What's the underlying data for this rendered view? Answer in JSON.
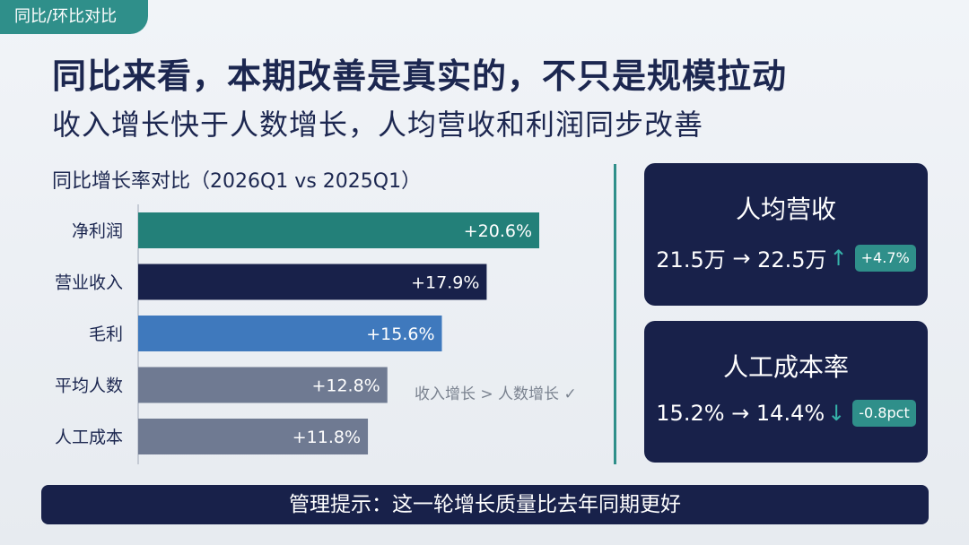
{
  "tag": "同比/环比对比",
  "title": "同比来看，本期改善是真实的，不只是规模拉动",
  "subtitle": "收入增长快于人数增长，人均营收和利润同步改善",
  "chart_data": {
    "type": "bar",
    "orientation": "horizontal",
    "title": "同比增长率对比（2026Q1 vs 2025Q1）",
    "categories": [
      "净利润",
      "营业收入",
      "毛利",
      "平均人数",
      "人工成本"
    ],
    "values": [
      20.6,
      17.9,
      15.6,
      12.8,
      11.8
    ],
    "value_labels": [
      "+20.6%",
      "+17.9%",
      "+15.6%",
      "+12.8%",
      "+11.8%"
    ],
    "colors": [
      "#238079",
      "#18214a",
      "#3f79bd",
      "#6f7a92",
      "#6f7a92"
    ],
    "unit": "%",
    "annotation": "收入增长 > 人数增长 ✓"
  },
  "cards": [
    {
      "title": "人均营收",
      "from": "21.5万",
      "to": "22.5万",
      "arrow": "↑",
      "change": "+4.7%"
    },
    {
      "title": "人工成本率",
      "from": "15.2%",
      "to": "14.4%",
      "arrow": "↓",
      "change": "-0.8pct"
    }
  ],
  "banner": "管理提示：这一轮增长质量比去年同期更好",
  "colors": {
    "navy": "#18214a",
    "teal": "#2f8f8a",
    "blue": "#3f79bd",
    "slate": "#6f7a92"
  }
}
